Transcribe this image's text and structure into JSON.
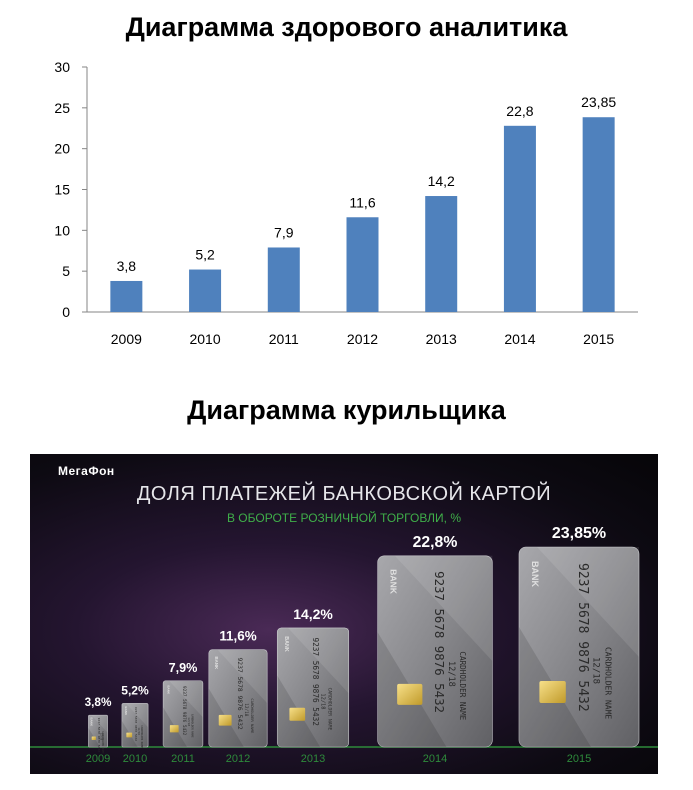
{
  "chart_data": [
    {
      "type": "bar",
      "title": "Диаграмма здорового аналитика",
      "categories": [
        "2009",
        "2010",
        "2011",
        "2012",
        "2013",
        "2014",
        "2015"
      ],
      "values": [
        3.8,
        5.2,
        7.9,
        11.6,
        14.2,
        22.8,
        23.85
      ],
      "data_labels": [
        "3,8",
        "5,2",
        "7,9",
        "11,6",
        "14,2",
        "22,8",
        "23,85"
      ],
      "ylim": [
        0,
        30
      ],
      "yticks": [
        "0",
        "5",
        "10",
        "15",
        "20",
        "25",
        "30"
      ],
      "xlabel": "",
      "ylabel": "",
      "grid": false,
      "bar_color": "#4f81bd"
    },
    {
      "type": "bar",
      "title": "Диаграмма курильщика",
      "infographic_brand": "МегаФон",
      "infographic_title": "ДОЛЯ ПЛАТЕЖЕЙ БАНКОВСКОЙ КАРТОЙ",
      "infographic_subtitle": "В ОБОРОТЕ РОЗНИЧНОЙ ТОРГОВЛИ, %",
      "categories": [
        "2009",
        "2010",
        "2011",
        "2012",
        "2013",
        "2014",
        "2015"
      ],
      "values": [
        3.8,
        5.2,
        7.9,
        11.6,
        14.2,
        22.8,
        23.85
      ],
      "data_labels": [
        "3,8%",
        "5,2%",
        "7,9%",
        "11,6%",
        "14,2%",
        "22,8%",
        "23,85%"
      ],
      "card_bank_label": "BANK",
      "card_number": "9237 5678 9876 5432",
      "card_expiry": "12/18",
      "card_holder": "CARDHOLDER NAME",
      "bar_style": "bank-card",
      "background": "#140e1a",
      "accent_color": "#3fae49"
    }
  ]
}
